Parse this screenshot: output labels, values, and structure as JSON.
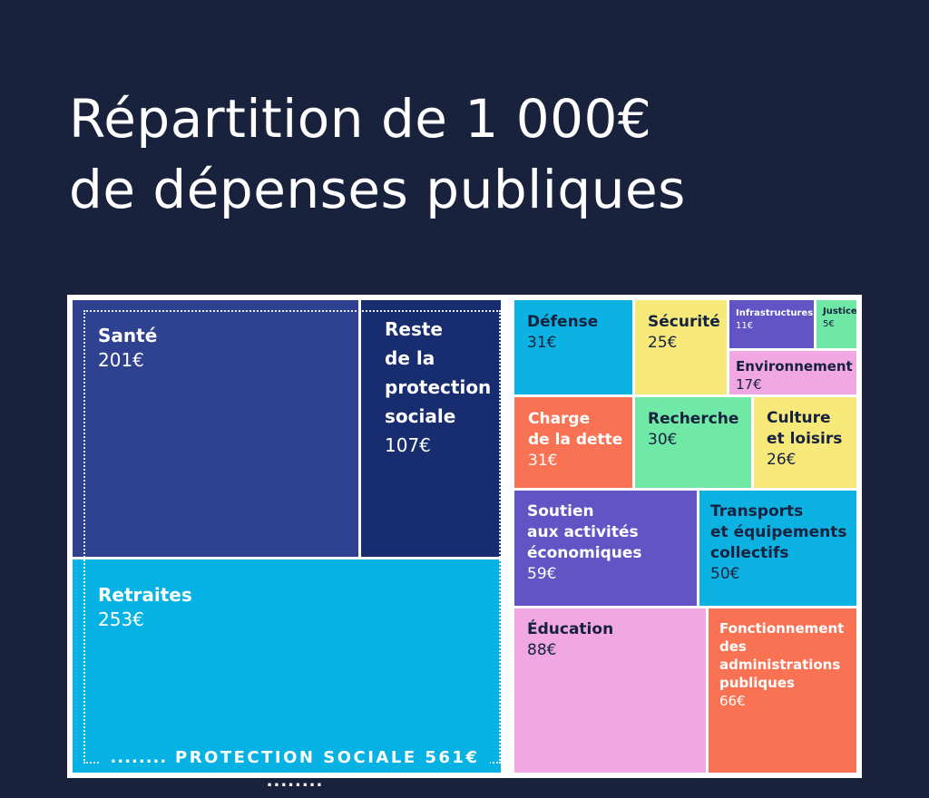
{
  "title": {
    "line1": "Répartition de 1 000€",
    "line2": "de dépenses publiques"
  },
  "group": {
    "label": "PROTECTION SOCIALE 561€",
    "prefix_dots": "........",
    "suffix_dots": "........"
  },
  "colors": {
    "background": "#19223d",
    "sante": "#2f4191",
    "reste_protection": "#172d70",
    "retraites": "#06b2e3",
    "defense": "#0cb2e2",
    "securite": "#f6e97a",
    "infrastructures": "#6354c5",
    "justice": "#6fe8a6",
    "environnement": "#f0a7e2",
    "charge_dette": "#f97253",
    "recherche": "#70e8a6",
    "culture": "#f6e97a",
    "soutien": "#6354c5",
    "transports": "#0cb2e2",
    "education": "#f0a7e2",
    "fonctionnement": "#f97253"
  },
  "chart_data": {
    "type": "treemap",
    "title": "Répartition de 1 000€ de dépenses publiques",
    "unit": "€",
    "total": 1000,
    "groups": [
      {
        "name": "PROTECTION SOCIALE",
        "value": 561,
        "children": [
          "Retraites",
          "Santé",
          "Reste de la protection sociale"
        ]
      }
    ],
    "categories": [
      "Retraites",
      "Santé",
      "Reste de la protection sociale",
      "Éducation",
      "Fonctionnement des administrations publiques",
      "Soutien aux activités économiques",
      "Transports et équipements collectifs",
      "Défense",
      "Charge de la dette",
      "Recherche",
      "Culture et loisirs",
      "Sécurité",
      "Environnement",
      "Infrastructures",
      "Justice"
    ],
    "values": [
      253,
      201,
      107,
      88,
      66,
      59,
      50,
      31,
      31,
      30,
      26,
      25,
      17,
      11,
      5
    ],
    "items": [
      {
        "key": "sante",
        "label": "Santé",
        "value_label": "201€",
        "value": 201
      },
      {
        "key": "reste_protection",
        "label": "Reste\nde la\nprotection\nsociale",
        "value_label": "107€",
        "value": 107
      },
      {
        "key": "retraites",
        "label": "Retraites",
        "value_label": "253€",
        "value": 253
      },
      {
        "key": "defense",
        "label": "Défense",
        "value_label": "31€",
        "value": 31
      },
      {
        "key": "securite",
        "label": "Sécurité",
        "value_label": "25€",
        "value": 25
      },
      {
        "key": "infrastructures",
        "label": "Infrastructures",
        "value_label": "11€",
        "value": 11
      },
      {
        "key": "justice",
        "label": "Justice",
        "value_label": "5€",
        "value": 5
      },
      {
        "key": "environnement",
        "label": "Environnement",
        "value_label": "17€",
        "value": 17
      },
      {
        "key": "charge_dette",
        "label": "Charge\nde la dette",
        "value_label": "31€",
        "value": 31
      },
      {
        "key": "recherche",
        "label": "Recherche",
        "value_label": "30€",
        "value": 30
      },
      {
        "key": "culture",
        "label": "Culture\net loisirs",
        "value_label": "26€",
        "value": 26
      },
      {
        "key": "soutien",
        "label": "Soutien\naux activités\néconomiques",
        "value_label": "59€",
        "value": 59
      },
      {
        "key": "transports",
        "label": "Transports\net équipements\ncollectifs",
        "value_label": "50€",
        "value": 50
      },
      {
        "key": "education",
        "label": "Éducation",
        "value_label": "88€",
        "value": 88
      },
      {
        "key": "fonctionnement",
        "label": "Fonctionnement\ndes\nadministrations\npubliques",
        "value_label": "66€",
        "value": 66
      }
    ]
  }
}
